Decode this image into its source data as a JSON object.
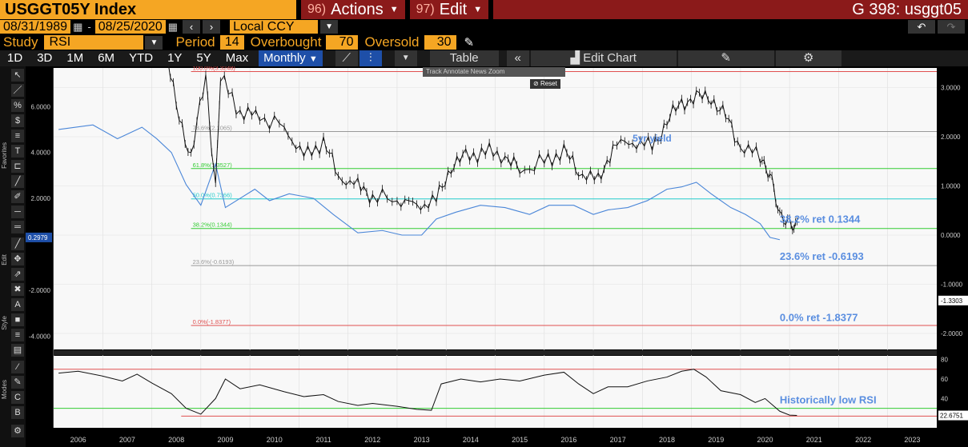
{
  "header": {
    "ticker": "USGGT05Y Index",
    "actions_num": "96)",
    "actions_label": "Actions",
    "edit_num": "97)",
    "edit_label": "Edit",
    "right_title": "G 398: usggt05"
  },
  "dates": {
    "start": "08/31/1989",
    "end": "08/25/2020",
    "currency": "Local CCY"
  },
  "study": {
    "label": "Study",
    "value": "RSI",
    "period_label": "Period",
    "period": "14",
    "overbought_label": "Overbought",
    "overbought": "70",
    "oversold_label": "Oversold",
    "oversold": "30"
  },
  "ranges": [
    "1D",
    "3D",
    "1M",
    "6M",
    "YTD",
    "1Y",
    "5Y",
    "Max"
  ],
  "frequency": "Monthly",
  "table_label": "Table",
  "edit_chart_label": "Edit Chart",
  "side_labels": {
    "favorites": "Favorites",
    "edit": "Edit",
    "style": "Style",
    "modes": "Modes"
  },
  "chart_menu": [
    "Track",
    "Annotate",
    "News",
    "Zoom"
  ],
  "reset_label": "Reset",
  "chart_data": {
    "type": "line",
    "x_ticks": [
      "2006",
      "2007",
      "2008",
      "2009",
      "2010",
      "2011",
      "2012",
      "2013",
      "2014",
      "2015",
      "2016",
      "2017",
      "2018",
      "2019",
      "2020",
      "2021",
      "2022",
      "2023"
    ],
    "left_ticks": [
      "6.0000",
      "4.0000",
      "2.0000",
      "-2.0000",
      "-4.0000"
    ],
    "right_ticks": [
      "3.0000",
      "2.0000",
      "1.0000",
      "0.0000",
      "-1.0000",
      "-2.0000"
    ],
    "rsi_ticks": [
      "80",
      "60",
      "40"
    ],
    "current_left": "0.2979",
    "current_right": "-1.3303",
    "current_rsi": "22.6751",
    "fib_levels": [
      {
        "label": "100.0%(3.3248)",
        "value": 3.3248,
        "color": "#e05050"
      },
      {
        "label": "78.6%(2.1065)",
        "value": 2.1065,
        "color": "#999999"
      },
      {
        "label": "61.8%(1.3527)",
        "value": 1.3527,
        "color": "#33cc33"
      },
      {
        "label": "50.0%(0.7366)",
        "value": 0.7366,
        "color": "#22cccc"
      },
      {
        "label": "38.2%(0.1344)",
        "value": 0.1344,
        "color": "#33cc33"
      },
      {
        "label": "23.6%(-0.6193)",
        "value": -0.6193,
        "color": "#999999"
      },
      {
        "label": "0.0%(-1.8377)",
        "value": -1.8377,
        "color": "#e05050"
      }
    ],
    "annotations": [
      "5yr yield",
      "38.2% ret 0.1344",
      "23.6% ret -0.6193",
      "0.0% ret -1.8377",
      "Historically low RSI"
    ],
    "spread_series": [
      [
        2005.6,
        5.0
      ],
      [
        2006.3,
        5.2
      ],
      [
        2006.8,
        4.6
      ],
      [
        2007.3,
        5.1
      ],
      [
        2007.6,
        4.6
      ],
      [
        2007.9,
        4.0
      ],
      [
        2008.2,
        2.6
      ],
      [
        2008.5,
        1.7
      ],
      [
        2008.8,
        3.5
      ],
      [
        2009.0,
        1.6
      ],
      [
        2009.3,
        2.0
      ],
      [
        2009.6,
        2.4
      ],
      [
        2009.9,
        1.9
      ],
      [
        2010.3,
        2.2
      ],
      [
        2010.8,
        2.0
      ],
      [
        2011.2,
        1.3
      ],
      [
        2011.7,
        0.5
      ],
      [
        2012.2,
        0.6
      ],
      [
        2012.6,
        0.4
      ],
      [
        2013.0,
        0.4
      ],
      [
        2013.3,
        1.1
      ],
      [
        2013.7,
        1.4
      ],
      [
        2014.2,
        1.7
      ],
      [
        2014.7,
        1.6
      ],
      [
        2015.2,
        1.3
      ],
      [
        2015.6,
        1.7
      ],
      [
        2016.1,
        1.7
      ],
      [
        2016.5,
        1.3
      ],
      [
        2016.8,
        1.5
      ],
      [
        2017.2,
        1.6
      ],
      [
        2017.6,
        1.9
      ],
      [
        2018.0,
        2.4
      ],
      [
        2018.3,
        2.5
      ],
      [
        2018.6,
        2.7
      ],
      [
        2018.9,
        2.2
      ],
      [
        2019.3,
        1.6
      ],
      [
        2019.6,
        1.3
      ],
      [
        2019.9,
        0.9
      ],
      [
        2020.1,
        0.3
      ],
      [
        2020.3,
        0.2
      ]
    ],
    "yield_series": [
      [
        2005.6,
        4.6
      ],
      [
        2006.0,
        5.0
      ],
      [
        2006.5,
        4.8
      ],
      [
        2006.9,
        4.6
      ],
      [
        2007.4,
        5.1
      ],
      [
        2007.7,
        4.2
      ],
      [
        2008.0,
        2.6
      ],
      [
        2008.3,
        1.6
      ],
      [
        2008.6,
        3.2
      ],
      [
        2008.8,
        1.0
      ],
      [
        2008.9,
        3.2
      ],
      [
        2009.3,
        2.5
      ],
      [
        2009.7,
        2.4
      ],
      [
        2010.2,
        2.2
      ],
      [
        2010.6,
        1.6
      ],
      [
        2011.0,
        1.9
      ],
      [
        2011.3,
        1.2
      ],
      [
        2011.7,
        1.0
      ],
      [
        2012.0,
        0.8
      ],
      [
        2012.5,
        0.7
      ],
      [
        2012.9,
        0.6
      ],
      [
        2013.3,
        0.7
      ],
      [
        2013.6,
        1.4
      ],
      [
        2013.9,
        1.6
      ],
      [
        2014.3,
        1.7
      ],
      [
        2014.7,
        1.6
      ],
      [
        2015.0,
        1.3
      ],
      [
        2015.5,
        1.5
      ],
      [
        2015.9,
        1.7
      ],
      [
        2016.2,
        1.3
      ],
      [
        2016.6,
        1.1
      ],
      [
        2016.9,
        1.8
      ],
      [
        2017.3,
        1.9
      ],
      [
        2017.7,
        1.8
      ],
      [
        2018.0,
        2.3
      ],
      [
        2018.3,
        2.7
      ],
      [
        2018.6,
        2.8
      ],
      [
        2018.9,
        2.8
      ],
      [
        2019.2,
        2.4
      ],
      [
        2019.5,
        1.8
      ],
      [
        2019.9,
        1.6
      ],
      [
        2020.1,
        1.3
      ],
      [
        2020.3,
        0.3
      ],
      [
        2020.5,
        0.3
      ],
      [
        2020.65,
        0.28
      ]
    ],
    "rsi_series": [
      [
        2005.6,
        66
      ],
      [
        2006.0,
        68
      ],
      [
        2006.5,
        63
      ],
      [
        2006.9,
        58
      ],
      [
        2007.2,
        65
      ],
      [
        2007.5,
        56
      ],
      [
        2007.9,
        45
      ],
      [
        2008.2,
        30
      ],
      [
        2008.5,
        24
      ],
      [
        2008.8,
        40
      ],
      [
        2009.0,
        60
      ],
      [
        2009.3,
        50
      ],
      [
        2009.7,
        54
      ],
      [
        2010.2,
        47
      ],
      [
        2010.6,
        42
      ],
      [
        2011.0,
        44
      ],
      [
        2011.3,
        37
      ],
      [
        2011.7,
        33
      ],
      [
        2012.0,
        35
      ],
      [
        2012.5,
        32
      ],
      [
        2012.9,
        29
      ],
      [
        2013.2,
        28
      ],
      [
        2013.4,
        55
      ],
      [
        2013.8,
        60
      ],
      [
        2014.2,
        57
      ],
      [
        2014.6,
        60
      ],
      [
        2015.0,
        58
      ],
      [
        2015.5,
        64
      ],
      [
        2015.9,
        67
      ],
      [
        2016.2,
        55
      ],
      [
        2016.5,
        45
      ],
      [
        2016.8,
        52
      ],
      [
        2017.2,
        52
      ],
      [
        2017.6,
        58
      ],
      [
        2018.0,
        62
      ],
      [
        2018.3,
        68
      ],
      [
        2018.55,
        70
      ],
      [
        2018.8,
        62
      ],
      [
        2019.1,
        48
      ],
      [
        2019.5,
        44
      ],
      [
        2019.8,
        36
      ],
      [
        2020.0,
        40
      ],
      [
        2020.3,
        27
      ],
      [
        2020.5,
        23
      ],
      [
        2020.65,
        22.7
      ]
    ]
  }
}
